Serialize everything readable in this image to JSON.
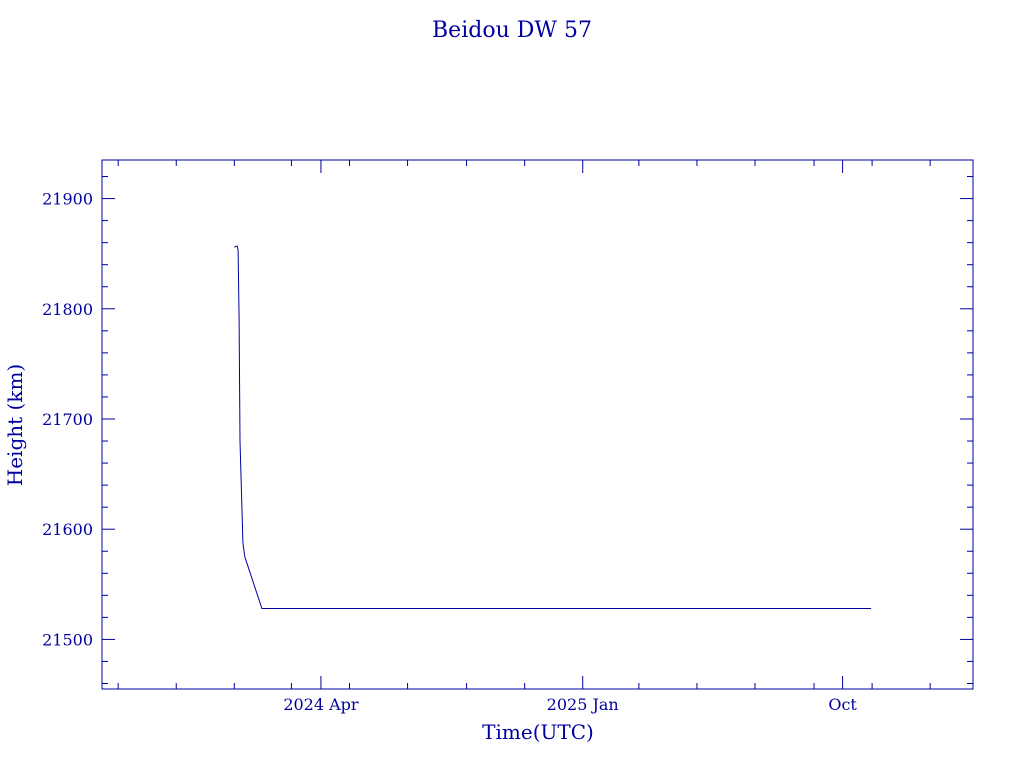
{
  "colors": {
    "ink": "#0000a0",
    "background": "#ffffff"
  },
  "chart_data": {
    "type": "line",
    "title": "Beidou DW 57",
    "xlabel": "Time(UTC)",
    "ylabel": "Height (km)",
    "grid": false,
    "legend": "none",
    "xlim": [
      "2023-08-15",
      "2026-02-15"
    ],
    "ylim": [
      21455,
      21935
    ],
    "x_tick_labels": [
      {
        "x": "2024-04-01",
        "label": "2024 Apr"
      },
      {
        "x": "2025-01-01",
        "label": "2025 Jan"
      },
      {
        "x": "2025-10-01",
        "label": "Oct"
      }
    ],
    "y_tick_labels": [
      {
        "y": 21500,
        "label": "21500"
      },
      {
        "y": 21600,
        "label": "21600"
      },
      {
        "y": 21700,
        "label": "21700"
      },
      {
        "y": 21800,
        "label": "21800"
      },
      {
        "y": 21900,
        "label": "21900"
      }
    ],
    "series": [
      {
        "x": [
          "2024-01-01",
          "2024-01-04",
          "2024-01-05",
          "2024-01-06",
          "2024-01-07",
          "2024-01-09",
          "2024-01-10",
          "2024-01-12",
          "2024-01-30",
          "2025-10-31"
        ],
        "y": [
          21856,
          21857,
          21853,
          21790,
          21680,
          21620,
          21588,
          21575,
          21528,
          21528
        ]
      }
    ]
  }
}
